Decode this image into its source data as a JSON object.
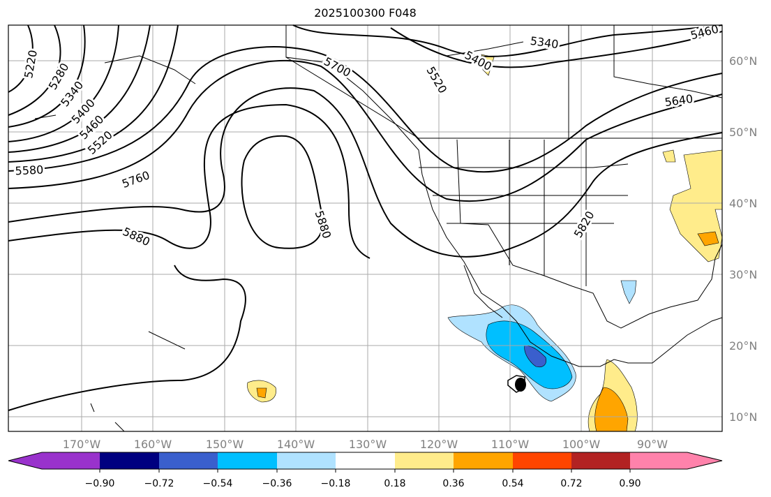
{
  "title": "2025100300 F048",
  "lat_labels": [
    "60°N",
    "50°N",
    "40°N",
    "30°N",
    "20°N",
    "10°N"
  ],
  "lon_labels": [
    "170°W",
    "160°W",
    "150°W",
    "140°W",
    "130°W",
    "120°W",
    "110°W",
    "100°W",
    "90°W"
  ],
  "contour_labels": [
    "5220",
    "5280",
    "5340",
    "5400",
    "5460",
    "5520",
    "5580",
    "5760",
    "5880",
    "5700",
    "5880",
    "5520",
    "5340",
    "5400",
    "5460",
    "5640",
    "5820"
  ],
  "colorbar": {
    "colors": [
      "#9932cc",
      "#000080",
      "#3a5fcd",
      "#00bfff",
      "#b0e2ff",
      "#ffffff",
      "#ffec8b",
      "#ffa500",
      "#ff4500",
      "#b22222",
      "#ff82ab"
    ],
    "ticks": [
      "−0.90",
      "−0.72",
      "−0.54",
      "−0.36",
      "−0.18",
      "0.18",
      "0.36",
      "0.54",
      "0.72",
      "0.90"
    ]
  }
}
